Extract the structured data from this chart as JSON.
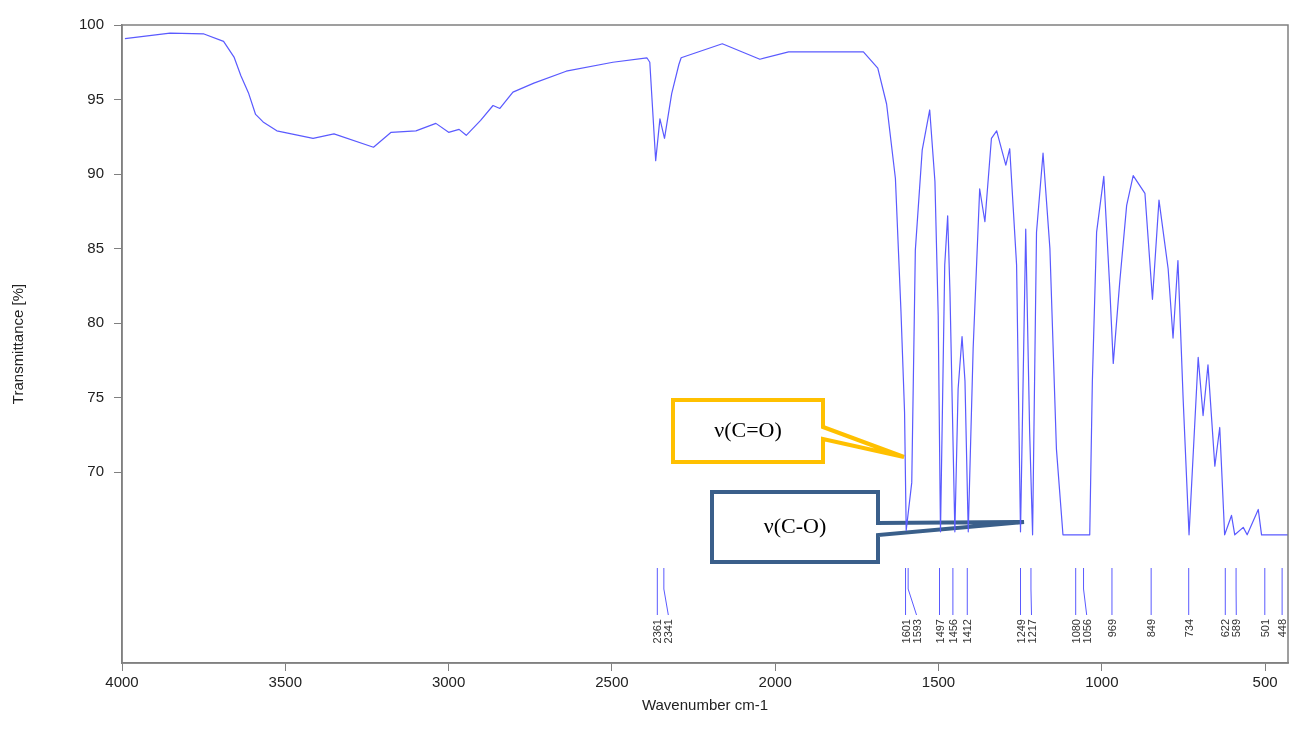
{
  "chart_data": {
    "type": "line",
    "xlabel": "Wavenumber cm-1",
    "ylabel": "Transmittance [%]",
    "xlim": [
      4000,
      430
    ],
    "ylim": [
      57.2,
      100
    ],
    "xticks": [
      4000,
      3500,
      3000,
      2500,
      2000,
      1500,
      1000,
      500
    ],
    "yticks": [
      70,
      75,
      80,
      85,
      90,
      95,
      100
    ],
    "grid": false,
    "legend": false,
    "marker": "none",
    "line_style": "solid",
    "x": [
      3991,
      3853,
      3749,
      3689,
      3657,
      3636,
      3612,
      3591,
      3568,
      3526,
      3415,
      3351,
      3230,
      3176,
      3100,
      3039,
      3000,
      2968,
      2946,
      2902,
      2864,
      2843,
      2803,
      2739,
      2640,
      2497,
      2393,
      2384,
      2366,
      2353,
      2339,
      2317,
      2295,
      2288,
      2162,
      2047,
      1959,
      1730,
      1686,
      1659,
      1632,
      1615,
      1604,
      1599,
      1582,
      1571,
      1550,
      1527,
      1511,
      1501,
      1494,
      1481,
      1472,
      1465,
      1450,
      1440,
      1428,
      1419,
      1409,
      1394,
      1374,
      1358,
      1338,
      1322,
      1294,
      1282,
      1261,
      1249,
      1233,
      1221,
      1212,
      1200,
      1180,
      1159,
      1139,
      1119,
      1080,
      1056,
      1037,
      1029,
      1016,
      994,
      976,
      965,
      945,
      924,
      904,
      868,
      845,
      825,
      797,
      782,
      767,
      751,
      733,
      705,
      690,
      675,
      654,
      639,
      624,
      603,
      593,
      567,
      555,
      521,
      511,
      501,
      448,
      430
    ],
    "series": [
      {
        "color": "#5a5aff",
        "values": [
          99.08,
          99.46,
          99.4,
          98.9,
          97.85,
          96.6,
          95.4,
          94.0,
          93.5,
          92.9,
          92.4,
          92.7,
          91.8,
          92.8,
          92.9,
          93.4,
          92.8,
          93.0,
          92.6,
          93.6,
          94.6,
          94.4,
          95.5,
          96.1,
          96.9,
          97.5,
          97.8,
          97.5,
          90.9,
          93.7,
          92.4,
          95.4,
          97.35,
          97.8,
          98.74,
          97.7,
          98.2,
          98.2,
          97.1,
          94.7,
          89.7,
          80.8,
          74.0,
          66.1,
          69.3,
          84.9,
          91.6,
          94.3,
          89.5,
          80.5,
          66.0,
          83.9,
          87.2,
          82.1,
          66.0,
          75.6,
          79.1,
          76.1,
          66.0,
          78.3,
          89.0,
          86.8,
          92.4,
          92.9,
          90.6,
          91.7,
          83.9,
          66.0,
          86.3,
          72.7,
          65.8,
          86.1,
          91.4,
          85.0,
          71.55,
          65.8,
          65.8,
          65.8,
          65.8,
          76.1,
          86.1,
          89.85,
          82.5,
          77.3,
          82.8,
          87.9,
          89.9,
          88.7,
          81.6,
          88.25,
          83.65,
          79.0,
          84.2,
          74.9,
          65.8,
          77.7,
          73.8,
          77.2,
          70.4,
          73.0,
          65.8,
          67.1,
          65.8,
          66.3,
          65.8,
          67.5,
          65.8,
          65.8,
          65.8,
          65.8
        ]
      }
    ],
    "annotations": [
      "ν(C=O)",
      "ν(C-O)",
      {
        "text": "2361",
        "x": 2361
      },
      {
        "text": "2341",
        "x": 2341
      },
      {
        "text": "1601",
        "x": 1601
      },
      {
        "text": "1593",
        "x": 1593
      },
      {
        "text": "1497",
        "x": 1497
      },
      {
        "text": "1456",
        "x": 1456
      },
      {
        "text": "1412",
        "x": 1412
      },
      {
        "text": "1249",
        "x": 1249
      },
      {
        "text": "1217",
        "x": 1217
      },
      {
        "text": "1080",
        "x": 1080
      },
      {
        "text": "1056",
        "x": 1056
      },
      {
        "text": "969",
        "x": 969
      },
      {
        "text": "849",
        "x": 849
      },
      {
        "text": "734",
        "x": 734
      },
      {
        "text": "622",
        "x": 622
      },
      {
        "text": "589",
        "x": 589
      },
      {
        "text": "501",
        "x": 501
      },
      {
        "text": "448",
        "x": 448
      }
    ]
  }
}
